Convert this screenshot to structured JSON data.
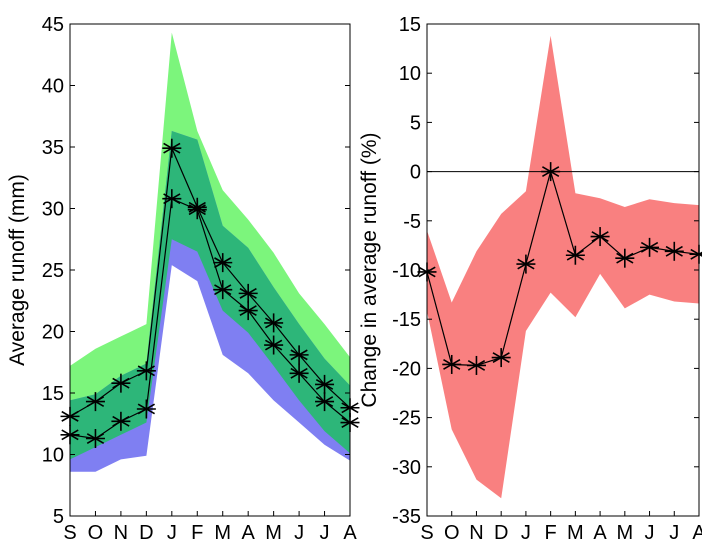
{
  "figure": {
    "panels": [
      {
        "ylabel": "Average runoff (mm)"
      },
      {
        "ylabel": "Change in average runoff (%)"
      }
    ]
  },
  "colors": {
    "band_green": "#7CF57C",
    "band_blue": "#7F7FF2",
    "band_overlap": "#2DB679",
    "band_red": "#F98080",
    "marker": "#000000",
    "zero_line": "#000000"
  },
  "chart_data": [
    {
      "type": "line",
      "ylabel": "Average runoff (mm)",
      "ylim": [
        5,
        45
      ],
      "yticks": [
        5,
        10,
        15,
        20,
        25,
        30,
        35,
        40,
        45
      ],
      "categories": [
        "S",
        "O",
        "N",
        "D",
        "J",
        "F",
        "M",
        "A",
        "M",
        "J",
        "J",
        "A"
      ],
      "grid": false,
      "series": [
        {
          "values": [
            13.1,
            14.3,
            15.8,
            16.8,
            34.9,
            30.1,
            25.6,
            23.1,
            20.7,
            18.1,
            15.7,
            13.8
          ],
          "band_low": [
            9.6,
            10.6,
            11.6,
            12.6,
            27.5,
            26.5,
            21.7,
            19.9,
            17.2,
            14.4,
            11.9,
            10.1
          ],
          "band_high": [
            17.2,
            18.6,
            19.6,
            20.6,
            44.3,
            36.3,
            31.5,
            29.1,
            26.4,
            23.1,
            20.6,
            17.9
          ]
        },
        {
          "values": [
            11.6,
            11.3,
            12.7,
            13.7,
            30.8,
            29.9,
            23.4,
            21.7,
            18.9,
            16.6,
            14.3,
            12.6
          ],
          "band_low": [
            8.6,
            8.6,
            9.6,
            9.9,
            25.4,
            24.1,
            18.1,
            16.6,
            14.4,
            12.6,
            10.8,
            9.5
          ],
          "band_high": [
            14.4,
            14.9,
            16.4,
            17.4,
            36.3,
            35.6,
            28.6,
            26.8,
            23.6,
            20.6,
            17.8,
            15.6
          ]
        }
      ]
    },
    {
      "type": "line",
      "ylabel": "Change in average runoff (%)",
      "ylim": [
        -35,
        15
      ],
      "yticks": [
        -35,
        -30,
        -25,
        -20,
        -15,
        -10,
        -5,
        0,
        5,
        10,
        15
      ],
      "categories": [
        "S",
        "O",
        "N",
        "D",
        "J",
        "F",
        "M",
        "A",
        "M",
        "J",
        "J",
        "A"
      ],
      "grid": false,
      "reference_line": 0,
      "series": [
        {
          "values": [
            -10.2,
            -19.6,
            -19.7,
            -18.9,
            -9.4,
            0,
            -8.5,
            -6.6,
            -8.8,
            -7.7,
            -8.1,
            -8.4
          ],
          "band_low": [
            -14.2,
            -26.2,
            -31.3,
            -33.2,
            -16.2,
            -12.3,
            -14.8,
            -10.4,
            -13.9,
            -12.5,
            -13.2,
            -13.4
          ],
          "band_high": [
            -6.0,
            -13.3,
            -8.1,
            -4.3,
            -2.0,
            13.8,
            -2.2,
            -2.7,
            -3.6,
            -2.8,
            -3.2,
            -3.4
          ]
        }
      ]
    }
  ]
}
